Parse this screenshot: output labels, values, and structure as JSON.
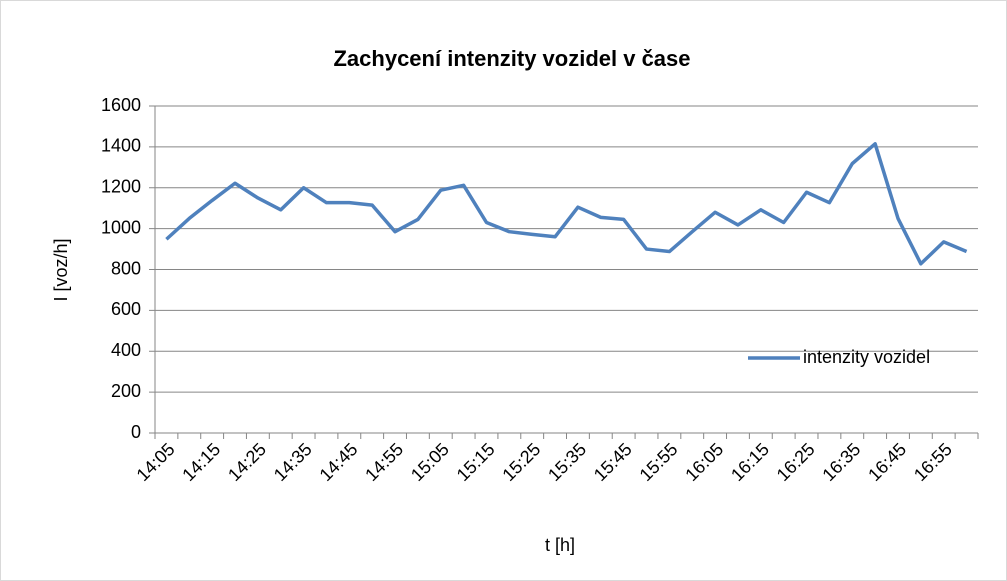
{
  "chart_data": {
    "type": "line",
    "title": "Zachycení intenzity vozidel v čase",
    "x_label": "t [h]",
    "y_label": "I [voz/h]",
    "categories": [
      "14:05",
      null,
      "14:15",
      null,
      "14:25",
      null,
      "14:35",
      null,
      "14:45",
      null,
      "14:55",
      null,
      "15:05",
      null,
      "15:15",
      null,
      "15:25",
      null,
      "15:35",
      null,
      "15:45",
      null,
      "15:55",
      null,
      "16:05",
      null,
      "16:15",
      null,
      "16:25",
      null,
      "16:35",
      null,
      "16:45",
      null,
      "16:55",
      null
    ],
    "series": [
      {
        "name": "intenzity vozidel",
        "color": "#4f81bd",
        "values": [
          948,
          1050,
          1138,
          1222,
          1150,
          1092,
          1200,
          1127,
          1127,
          1115,
          985,
          1045,
          1188,
          1212,
          1030,
          985,
          972,
          960,
          1105,
          1055,
          1045,
          900,
          888,
          985,
          1080,
          1018,
          1092,
          1030,
          1178,
          1127,
          1318,
          1415,
          1050,
          828,
          935,
          888
        ]
      }
    ],
    "ylim": [
      0,
      1600
    ],
    "yticks": [
      0,
      200,
      400,
      600,
      800,
      1000,
      1200,
      1400,
      1600
    ],
    "grid": true,
    "legend": "right"
  }
}
